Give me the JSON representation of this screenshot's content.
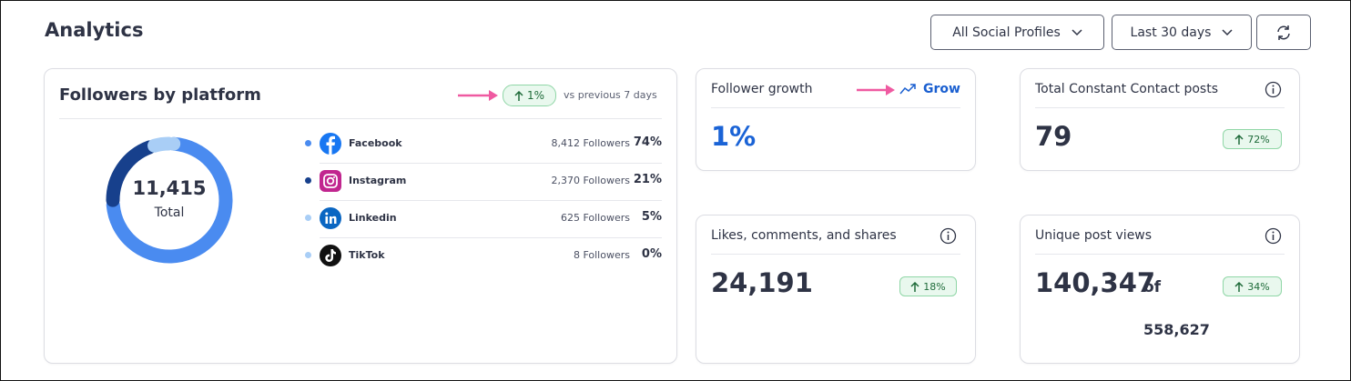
{
  "header": {
    "title": "Analytics",
    "filters": [
      "All Social Profiles",
      "Last 30 days"
    ]
  },
  "followers_card": {
    "title": "Followers by platform",
    "change": "1%",
    "comparison": "vs previous 7 days",
    "total": "11,415",
    "total_label": "Total",
    "platforms": [
      {
        "name": "Facebook",
        "followers": 8412,
        "followers_label": "8,412 Followers",
        "share": "74%",
        "color": "#4a8bf0"
      },
      {
        "name": "Instagram",
        "followers": 2370,
        "followers_label": "2,370 Followers",
        "share": "21%",
        "color": "#17408c"
      },
      {
        "name": "Linkedin",
        "followers": 625,
        "followers_label": "625 Followers",
        "share": "5%",
        "color": "#a9cef6"
      },
      {
        "name": "TikTok",
        "followers": 8,
        "followers_label": "8 Followers",
        "share": "0%",
        "color": "#a9cef6"
      }
    ]
  },
  "follower_growth": {
    "title": "Follower growth",
    "link": "Grow",
    "value": "1%"
  },
  "total_posts": {
    "title": "Total Constant Contact posts",
    "value": "79",
    "change": "72%"
  },
  "engagement": {
    "title": "Likes, comments, and shares",
    "value": "24,191",
    "change": "18%"
  },
  "post_views": {
    "title": "Unique post views",
    "value": "140,347",
    "connector": "of",
    "total": "558,627",
    "change": "34%"
  }
}
